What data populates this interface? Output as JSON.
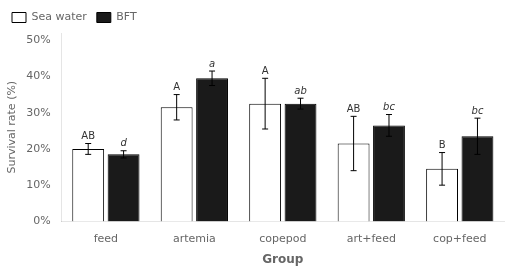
{
  "chart_data": {
    "type": "bar",
    "xlabel": "Group",
    "ylabel": "Survival rate (%)",
    "categories": [
      "feed",
      "artemia",
      "copepod",
      "art+feed",
      "cop+feed"
    ],
    "series": [
      {
        "name": "Sea water",
        "color": "#ffffff",
        "values": [
          20.0,
          31.5,
          32.5,
          21.5,
          14.5
        ],
        "errors": [
          1.5,
          3.5,
          7.0,
          7.5,
          4.5
        ],
        "annotations": [
          "AB",
          "A",
          "A",
          "AB",
          "B"
        ]
      },
      {
        "name": "BFT",
        "color": "#1a1a1a",
        "values": [
          18.5,
          39.5,
          32.5,
          26.5,
          23.5
        ],
        "errors": [
          1.0,
          2.0,
          1.5,
          3.0,
          5.0
        ],
        "annotations": [
          "d",
          "a",
          "ab",
          "bc",
          "bc"
        ]
      }
    ],
    "ylim": [
      0,
      52
    ],
    "yticks": [
      {
        "value": 0,
        "label": "0%"
      },
      {
        "value": 10,
        "label": "10%"
      },
      {
        "value": 20,
        "label": "20%"
      },
      {
        "value": 30,
        "label": "30%"
      },
      {
        "value": 40,
        "label": "40%"
      },
      {
        "value": 50,
        "label": "50%"
      }
    ],
    "grid": false,
    "legend": "upper left"
  }
}
